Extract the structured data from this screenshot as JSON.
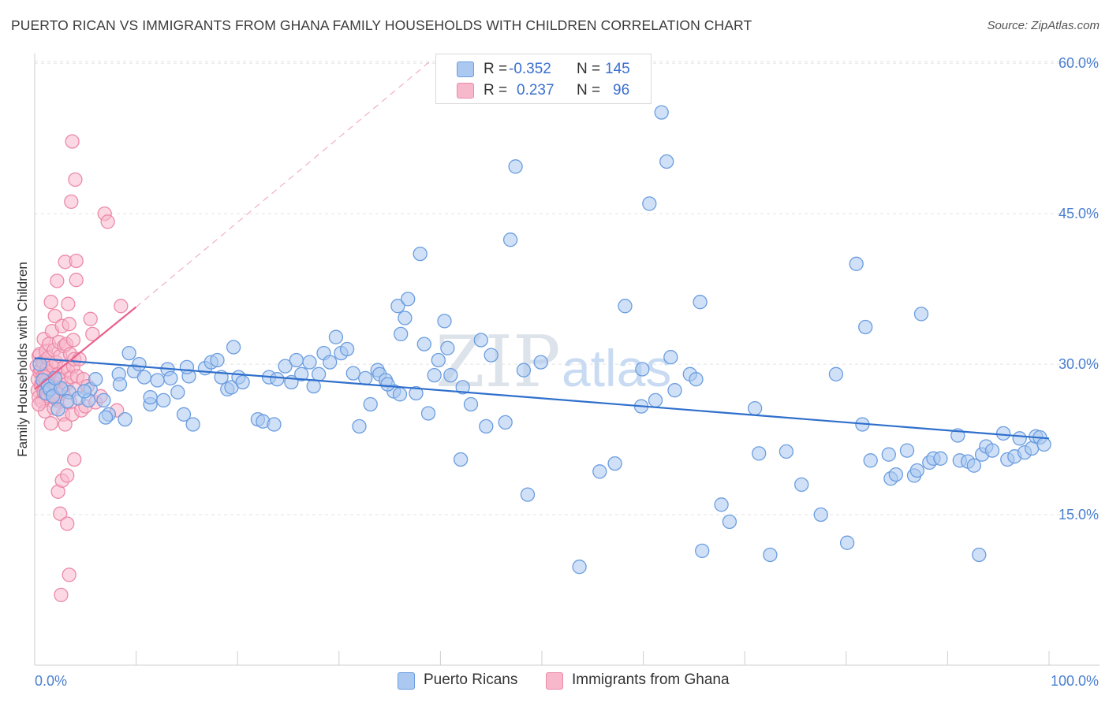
{
  "header": {
    "title": "PUERTO RICAN VS IMMIGRANTS FROM GHANA FAMILY HOUSEHOLDS WITH CHILDREN CORRELATION CHART",
    "source": "Source: ZipAtlas.com"
  },
  "watermark": {
    "left": "ZIP",
    "right": "atlas"
  },
  "legend": {
    "rows": [
      {
        "r_label": "R =",
        "r_value": "-0.352",
        "n_label": "N =",
        "n_value": "145"
      },
      {
        "r_label": "R =",
        "r_value": "0.237",
        "n_label": "N =",
        "n_value": "96"
      }
    ]
  },
  "bottom_legend": {
    "items": [
      {
        "label": "Puerto Ricans"
      },
      {
        "label": "Immigrants from Ghana"
      }
    ]
  },
  "chart_data": {
    "type": "scatter",
    "title": "PUERTO RICAN VS IMMIGRANTS FROM GHANA FAMILY HOUSEHOLDS WITH CHILDREN CORRELATION CHART",
    "xlabel": "",
    "ylabel": "Family Households with Children",
    "xlim": [
      0,
      100
    ],
    "ylim": [
      0,
      63
    ],
    "x_tick_labels": [
      {
        "value": 0,
        "label": "0.0%"
      },
      {
        "value": 100,
        "label": "100.0%"
      }
    ],
    "y_tick_labels": [
      {
        "value": 15,
        "label": "15.0%"
      },
      {
        "value": 30,
        "label": "30.0%"
      },
      {
        "value": 45,
        "label": "45.0%"
      },
      {
        "value": 60,
        "label": "60.0%"
      }
    ],
    "grid": true,
    "legend_position": "top-center",
    "colors": {
      "puerto_ricans_fill": "#aac8f0",
      "puerto_ricans_stroke": "#6b9de0",
      "puerto_ricans_line": "#2f6fcc",
      "ghana_fill": "#f7b8cc",
      "ghana_stroke": "#ec8aa8",
      "ghana_line": "#e8608c",
      "tick_label": "#4a7fd0"
    },
    "trend_lines": [
      {
        "series": "Puerto Ricans",
        "x": [
          0,
          100
        ],
        "y": [
          30.6,
          22.6
        ],
        "style": "solid"
      },
      {
        "series": "Immigrants from Ghana",
        "x": [
          0,
          10
        ],
        "y": [
          27.5,
          35.7
        ],
        "style": "solid"
      },
      {
        "series": "Immigrants from Ghana",
        "x": [
          10,
          39
        ],
        "y": [
          35.7,
          60.2
        ],
        "style": "dashed"
      }
    ],
    "series": [
      {
        "name": "Puerto Ricans",
        "points": [
          [
            0.8,
            28.4
          ],
          [
            1.1,
            27.1
          ],
          [
            1.3,
            27.9
          ],
          [
            1.5,
            27.5
          ],
          [
            1.8,
            26.8
          ],
          [
            2.3,
            25.5
          ],
          [
            3.4,
            27.2
          ],
          [
            4.3,
            26.6
          ],
          [
            5.5,
            27.5
          ],
          [
            6.0,
            28.5
          ],
          [
            5.3,
            26.4
          ],
          [
            6.8,
            26.4
          ],
          [
            7.3,
            25.0
          ],
          [
            8.3,
            29.0
          ],
          [
            8.4,
            28.0
          ],
          [
            8.9,
            24.5
          ],
          [
            9.3,
            31.1
          ],
          [
            9.8,
            29.3
          ],
          [
            10.3,
            30.0
          ],
          [
            10.8,
            28.7
          ],
          [
            11.4,
            26.0
          ],
          [
            11.4,
            26.7
          ],
          [
            12.1,
            28.4
          ],
          [
            12.7,
            26.4
          ],
          [
            13.1,
            29.5
          ],
          [
            13.4,
            28.6
          ],
          [
            14.1,
            27.2
          ],
          [
            14.7,
            25.0
          ],
          [
            15.2,
            28.8
          ],
          [
            15.6,
            24.0
          ],
          [
            16.8,
            29.6
          ],
          [
            17.4,
            30.2
          ],
          [
            18.0,
            30.4
          ],
          [
            18.4,
            28.7
          ],
          [
            19.0,
            27.5
          ],
          [
            19.4,
            27.7
          ],
          [
            19.6,
            31.7
          ],
          [
            20.1,
            28.7
          ],
          [
            20.5,
            28.2
          ],
          [
            22.0,
            24.5
          ],
          [
            22.5,
            24.3
          ],
          [
            23.1,
            28.7
          ],
          [
            23.6,
            24.0
          ],
          [
            23.9,
            28.5
          ],
          [
            24.7,
            29.8
          ],
          [
            25.3,
            28.2
          ],
          [
            25.8,
            30.4
          ],
          [
            26.3,
            29.0
          ],
          [
            27.1,
            30.2
          ],
          [
            27.5,
            27.8
          ],
          [
            28.0,
            29.0
          ],
          [
            28.5,
            31.1
          ],
          [
            29.1,
            30.2
          ],
          [
            29.7,
            32.7
          ],
          [
            30.2,
            31.1
          ],
          [
            30.8,
            31.5
          ],
          [
            31.4,
            29.1
          ],
          [
            32.0,
            23.8
          ],
          [
            32.6,
            28.6
          ],
          [
            33.1,
            26.0
          ],
          [
            33.8,
            29.4
          ],
          [
            34.0,
            29.0
          ],
          [
            34.6,
            28.4
          ],
          [
            35.4,
            27.3
          ],
          [
            36.0,
            27.0
          ],
          [
            35.8,
            35.8
          ],
          [
            36.1,
            33.0
          ],
          [
            36.5,
            34.6
          ],
          [
            36.8,
            36.5
          ],
          [
            37.6,
            27.1
          ],
          [
            38.0,
            41.0
          ],
          [
            38.4,
            32.0
          ],
          [
            38.8,
            25.1
          ],
          [
            39.4,
            28.9
          ],
          [
            39.8,
            30.4
          ],
          [
            40.4,
            34.3
          ],
          [
            40.7,
            31.6
          ],
          [
            41.0,
            28.9
          ],
          [
            42.0,
            20.5
          ],
          [
            42.2,
            27.7
          ],
          [
            44.0,
            32.4
          ],
          [
            44.5,
            23.8
          ],
          [
            43.0,
            26.0
          ],
          [
            45.0,
            30.9
          ],
          [
            46.4,
            24.2
          ],
          [
            46.9,
            42.4
          ],
          [
            47.4,
            49.7
          ],
          [
            48.2,
            29.4
          ],
          [
            48.6,
            17.0
          ],
          [
            49.9,
            30.2
          ],
          [
            53.7,
            9.8
          ],
          [
            55.7,
            19.3
          ],
          [
            57.2,
            20.1
          ],
          [
            58.2,
            35.8
          ],
          [
            59.8,
            25.8
          ],
          [
            59.9,
            29.5
          ],
          [
            60.6,
            46.0
          ],
          [
            61.2,
            26.4
          ],
          [
            61.8,
            55.1
          ],
          [
            62.3,
            50.2
          ],
          [
            63.1,
            27.4
          ],
          [
            64.6,
            29.0
          ],
          [
            65.2,
            28.5
          ],
          [
            65.6,
            36.2
          ],
          [
            65.8,
            11.4
          ],
          [
            67.7,
            16.0
          ],
          [
            68.5,
            14.3
          ],
          [
            71.0,
            25.6
          ],
          [
            71.4,
            21.1
          ],
          [
            72.5,
            11.0
          ],
          [
            74.1,
            21.3
          ],
          [
            75.6,
            18.0
          ],
          [
            77.5,
            15.0
          ],
          [
            79.0,
            29.0
          ],
          [
            80.1,
            12.2
          ],
          [
            81.0,
            40.0
          ],
          [
            81.6,
            24.0
          ],
          [
            81.9,
            33.7
          ],
          [
            82.4,
            20.4
          ],
          [
            84.2,
            21.0
          ],
          [
            84.4,
            18.6
          ],
          [
            84.9,
            19.0
          ],
          [
            86.0,
            21.4
          ],
          [
            86.7,
            18.9
          ],
          [
            87.0,
            19.4
          ],
          [
            87.4,
            35.0
          ],
          [
            88.2,
            20.2
          ],
          [
            88.6,
            20.6
          ],
          [
            89.3,
            20.6
          ],
          [
            91.0,
            22.9
          ],
          [
            91.2,
            20.4
          ],
          [
            92.0,
            20.3
          ],
          [
            92.6,
            19.9
          ],
          [
            93.1,
            11.0
          ],
          [
            93.4,
            21.0
          ],
          [
            93.8,
            21.8
          ],
          [
            94.4,
            21.4
          ],
          [
            95.5,
            23.1
          ],
          [
            95.9,
            20.5
          ],
          [
            96.6,
            20.8
          ],
          [
            97.1,
            22.6
          ],
          [
            97.6,
            21.2
          ],
          [
            98.3,
            21.6
          ],
          [
            98.7,
            22.8
          ],
          [
            99.1,
            22.7
          ],
          [
            99.5,
            22.0
          ],
          [
            2.6,
            27.6
          ],
          [
            7.0,
            24.7
          ],
          [
            0.5,
            30.0
          ],
          [
            2.0,
            28.6
          ],
          [
            3.2,
            26.3
          ],
          [
            4.9,
            27.3
          ],
          [
            15.0,
            29.7
          ],
          [
            34.8,
            28.0
          ],
          [
            62.7,
            30.7
          ]
        ]
      },
      {
        "name": "Immigrants from Ghana",
        "points": [
          [
            0.2,
            29.8
          ],
          [
            0.3,
            28.5
          ],
          [
            0.3,
            27.4
          ],
          [
            0.4,
            30.8
          ],
          [
            0.4,
            26.7
          ],
          [
            0.5,
            29.2
          ],
          [
            0.5,
            31.0
          ],
          [
            0.6,
            27.9
          ],
          [
            0.6,
            29.5
          ],
          [
            0.7,
            28.1
          ],
          [
            0.7,
            26.3
          ],
          [
            0.8,
            30.2
          ],
          [
            0.8,
            28.8
          ],
          [
            0.9,
            27.2
          ],
          [
            0.9,
            32.5
          ],
          [
            1.0,
            29.0
          ],
          [
            1.0,
            25.3
          ],
          [
            1.1,
            28.3
          ],
          [
            1.1,
            31.3
          ],
          [
            1.2,
            27.0
          ],
          [
            1.2,
            29.6
          ],
          [
            1.3,
            26.8
          ],
          [
            1.3,
            30.6
          ],
          [
            1.4,
            28.9
          ],
          [
            1.4,
            32.0
          ],
          [
            1.5,
            27.4
          ],
          [
            1.5,
            29.2
          ],
          [
            1.6,
            36.2
          ],
          [
            1.6,
            24.1
          ],
          [
            1.7,
            28.5
          ],
          [
            1.7,
            33.3
          ],
          [
            1.8,
            27.0
          ],
          [
            1.8,
            29.8
          ],
          [
            1.9,
            31.4
          ],
          [
            1.9,
            25.6
          ],
          [
            2.0,
            28.1
          ],
          [
            2.0,
            34.8
          ],
          [
            2.1,
            27.7
          ],
          [
            2.1,
            30.2
          ],
          [
            2.2,
            38.3
          ],
          [
            2.2,
            26.4
          ],
          [
            2.3,
            29.0
          ],
          [
            2.3,
            17.3
          ],
          [
            2.4,
            32.2
          ],
          [
            2.4,
            27.0
          ],
          [
            2.5,
            15.1
          ],
          [
            2.5,
            30.8
          ],
          [
            2.6,
            7.0
          ],
          [
            2.6,
            28.5
          ],
          [
            2.7,
            18.4
          ],
          [
            2.7,
            33.8
          ],
          [
            2.8,
            27.4
          ],
          [
            2.8,
            25.0
          ],
          [
            2.9,
            29.7
          ],
          [
            2.9,
            31.8
          ],
          [
            3.0,
            40.2
          ],
          [
            3.0,
            24.0
          ],
          [
            3.1,
            28.0
          ],
          [
            3.1,
            32.0
          ],
          [
            3.2,
            18.9
          ],
          [
            3.2,
            14.1
          ],
          [
            3.3,
            36.0
          ],
          [
            3.3,
            29.4
          ],
          [
            3.4,
            9.0
          ],
          [
            3.4,
            34.0
          ],
          [
            3.5,
            26.2
          ],
          [
            3.5,
            31.0
          ],
          [
            3.6,
            46.2
          ],
          [
            3.6,
            28.7
          ],
          [
            3.7,
            52.2
          ],
          [
            3.7,
            25.0
          ],
          [
            3.8,
            32.4
          ],
          [
            3.8,
            29.8
          ],
          [
            3.9,
            20.5
          ],
          [
            3.9,
            30.5
          ],
          [
            4.0,
            48.4
          ],
          [
            4.0,
            27.5
          ],
          [
            4.1,
            38.4
          ],
          [
            4.1,
            40.3
          ],
          [
            4.2,
            28.8
          ],
          [
            4.4,
            30.5
          ],
          [
            4.6,
            25.4
          ],
          [
            4.8,
            28.5
          ],
          [
            5.0,
            25.8
          ],
          [
            5.2,
            27.8
          ],
          [
            5.5,
            34.5
          ],
          [
            5.7,
            33.0
          ],
          [
            6.0,
            26.2
          ],
          [
            6.5,
            26.8
          ],
          [
            6.9,
            45.0
          ],
          [
            7.2,
            44.2
          ],
          [
            8.1,
            25.4
          ],
          [
            8.5,
            35.8
          ],
          [
            0.4,
            26.0
          ],
          [
            1.0,
            28.7
          ],
          [
            2.0,
            26.6
          ]
        ]
      }
    ]
  }
}
